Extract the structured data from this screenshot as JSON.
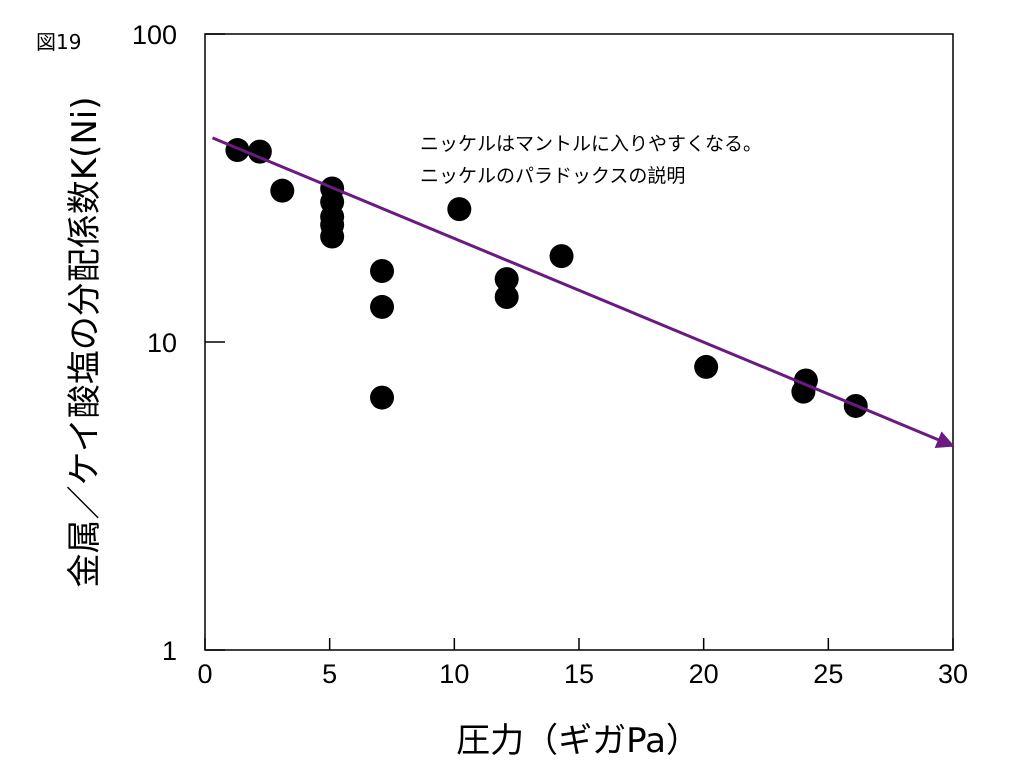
{
  "figure_label": "図19",
  "chart_data": {
    "type": "scatter",
    "title": "",
    "xlabel": "圧力（ギガPa）",
    "ylabel": "金属／ケイ酸塩の分配係数K(Ni)",
    "xlim": [
      0,
      30
    ],
    "ylim": [
      1,
      100
    ],
    "yscale": "log",
    "x_ticks": [
      0,
      5,
      10,
      15,
      20,
      25,
      30
    ],
    "y_ticks": [
      1,
      10,
      100
    ],
    "grid": false,
    "points": [
      {
        "x": 1.3,
        "y": 42
      },
      {
        "x": 2.2,
        "y": 41.5
      },
      {
        "x": 3.1,
        "y": 31
      },
      {
        "x": 5.1,
        "y": 31.5
      },
      {
        "x": 5.1,
        "y": 28.5
      },
      {
        "x": 5.1,
        "y": 25.5
      },
      {
        "x": 5.1,
        "y": 24
      },
      {
        "x": 5.1,
        "y": 22
      },
      {
        "x": 7.1,
        "y": 17
      },
      {
        "x": 7.1,
        "y": 13
      },
      {
        "x": 7.1,
        "y": 6.6
      },
      {
        "x": 10.2,
        "y": 27
      },
      {
        "x": 12.1,
        "y": 16
      },
      {
        "x": 12.1,
        "y": 14
      },
      {
        "x": 14.3,
        "y": 19
      },
      {
        "x": 20.1,
        "y": 8.3
      },
      {
        "x": 24.1,
        "y": 7.5
      },
      {
        "x": 24.0,
        "y": 6.9
      },
      {
        "x": 26.1,
        "y": 6.2
      }
    ],
    "trend_line": {
      "x": [
        0.3,
        30
      ],
      "y": [
        46,
        4.6
      ],
      "color": "#6a1a80",
      "arrow": true
    },
    "annotations": [
      "ニッケルはマントルに入りやすくなる。",
      "ニッケルのパラドックスの説明"
    ],
    "colors": {
      "points": "#000000",
      "trend": "#6a1a80",
      "axes": "#000000"
    }
  }
}
